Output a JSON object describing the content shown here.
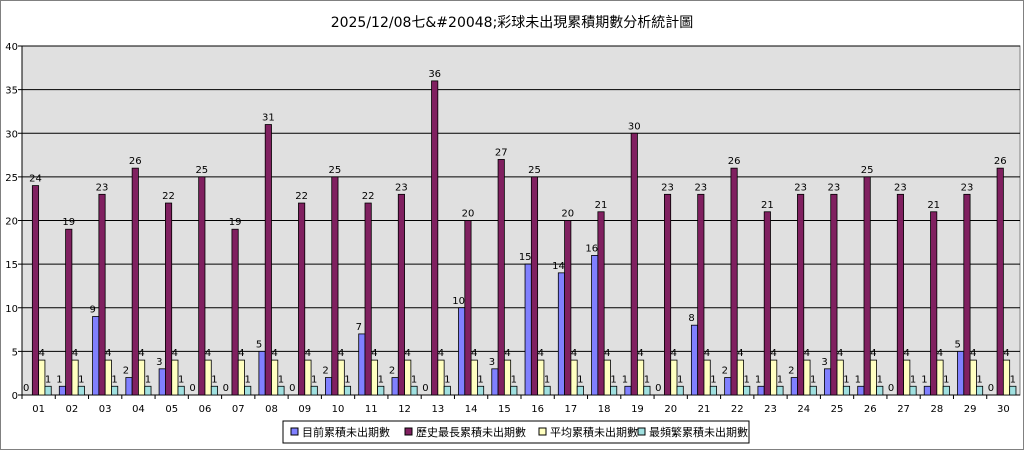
{
  "chart_data": {
    "type": "bar",
    "title": "2025/12/08七&#20048;彩球未出現累積期數分析統計圖",
    "xlabel": "",
    "ylabel": "",
    "ylim": [
      0,
      40
    ],
    "yticks": [
      0,
      5,
      10,
      15,
      20,
      25,
      30,
      35,
      40
    ],
    "grid": true,
    "legend_position": "bottom",
    "categories": [
      "01",
      "02",
      "03",
      "04",
      "05",
      "06",
      "07",
      "08",
      "09",
      "10",
      "11",
      "12",
      "13",
      "14",
      "15",
      "16",
      "17",
      "18",
      "19",
      "20",
      "21",
      "22",
      "23",
      "24",
      "25",
      "26",
      "27",
      "28",
      "29",
      "30"
    ],
    "series": [
      {
        "name": "目前累積未出期數",
        "color": "#8080FF",
        "values": [
          0,
          1,
          9,
          2,
          3,
          0,
          0,
          5,
          0,
          2,
          7,
          2,
          0,
          10,
          3,
          15,
          14,
          16,
          1,
          0,
          8,
          2,
          1,
          2,
          3,
          1,
          0,
          1,
          5,
          0
        ]
      },
      {
        "name": "歷史最長累積未出期數",
        "color": "#802060",
        "values": [
          24,
          19,
          23,
          26,
          22,
          25,
          19,
          31,
          22,
          25,
          22,
          23,
          36,
          20,
          27,
          25,
          20,
          21,
          30,
          23,
          23,
          26,
          21,
          23,
          23,
          25,
          23,
          21,
          23,
          26
        ]
      },
      {
        "name": "平均累積未出期數",
        "color": "#FFFFC0",
        "values": [
          4,
          4,
          4,
          4,
          4,
          4,
          4,
          4,
          4,
          4,
          4,
          4,
          4,
          4,
          4,
          4,
          4,
          4,
          4,
          4,
          4,
          4,
          4,
          4,
          4,
          4,
          4,
          4,
          4,
          4
        ]
      },
      {
        "name": "最頻繁累積未出期數",
        "color": "#A0E0E0",
        "values": [
          1,
          1,
          1,
          1,
          1,
          1,
          1,
          1,
          1,
          1,
          1,
          1,
          1,
          1,
          1,
          1,
          1,
          1,
          1,
          1,
          1,
          1,
          1,
          1,
          1,
          1,
          1,
          1,
          1,
          1
        ]
      }
    ],
    "plot_background": "#E0E0E0"
  }
}
